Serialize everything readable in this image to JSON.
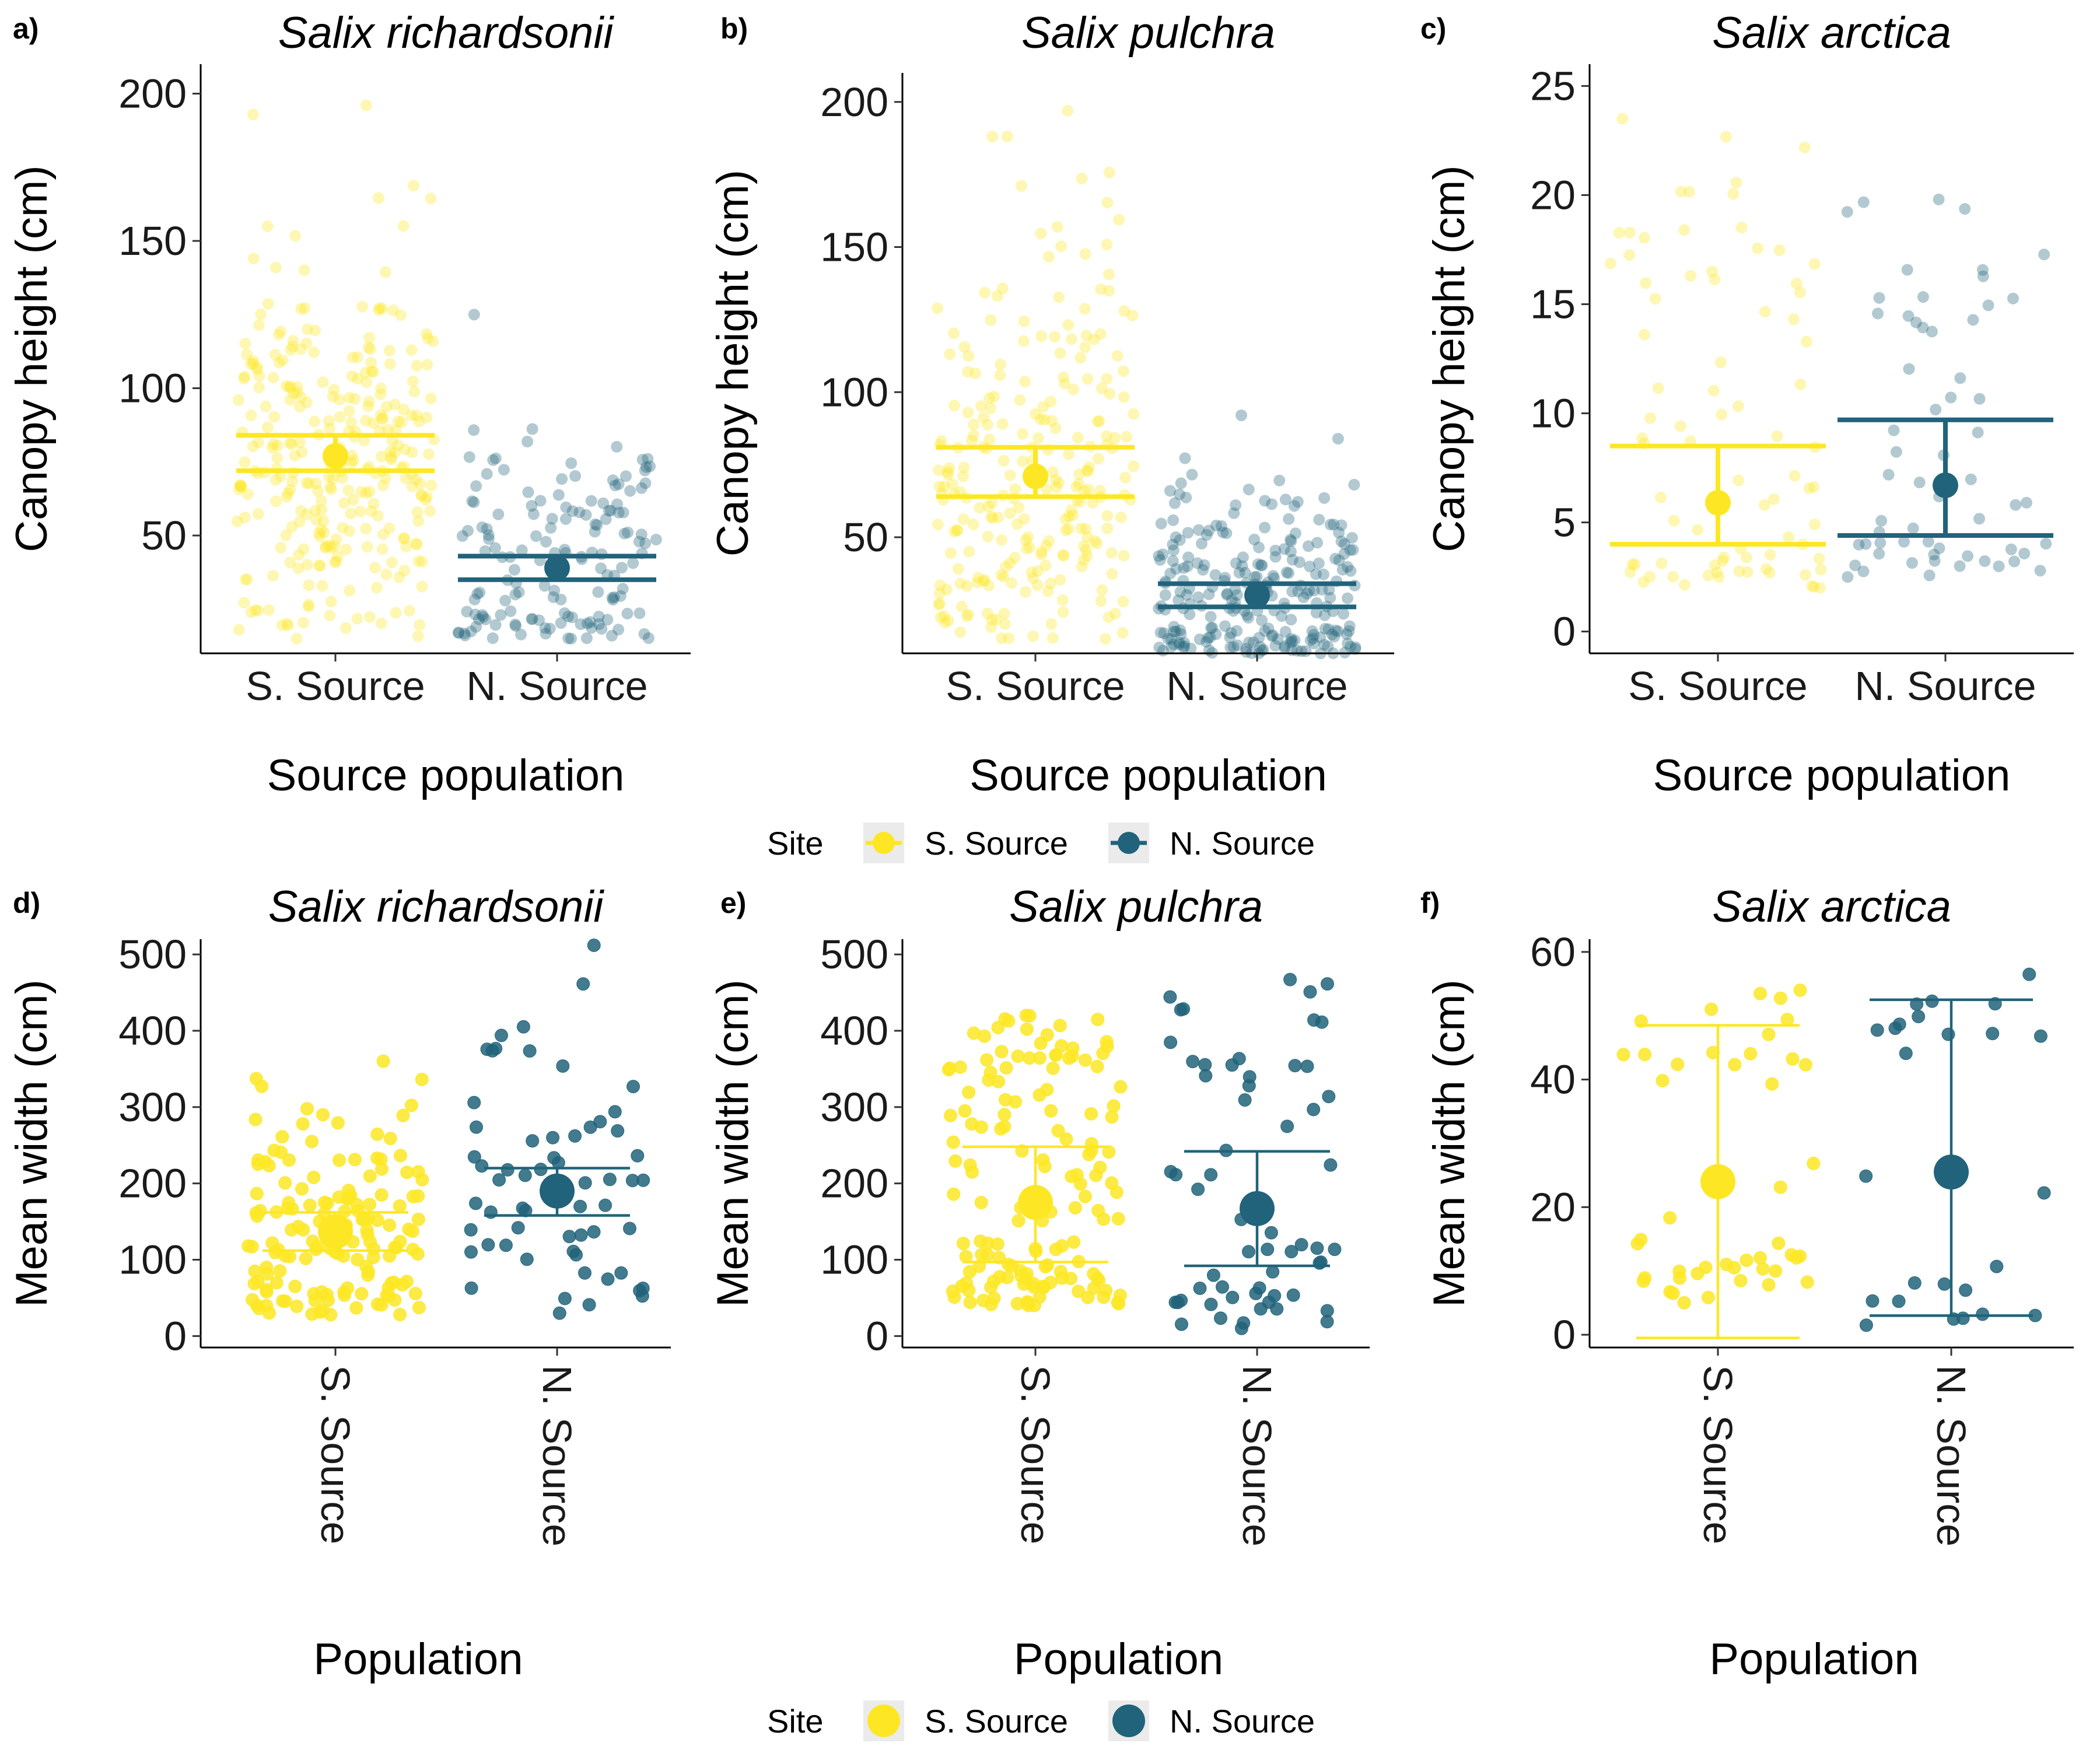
{
  "colors": {
    "s_source": "#FDE725",
    "n_source": "#21637A",
    "n_source_light": "#6E95A3",
    "legend_key_bg": "#EBEBEB"
  },
  "legends": [
    {
      "title": "Site",
      "items": [
        {
          "label": "S. Source",
          "color_key": "s_source"
        },
        {
          "label": "N. Source",
          "color_key": "n_source"
        }
      ]
    },
    {
      "title": "Site",
      "items": [
        {
          "label": "S. Source",
          "color_key": "s_source"
        },
        {
          "label": "N. Source",
          "color_key": "n_source"
        }
      ]
    }
  ],
  "chart_data": [
    {
      "panel": "a)",
      "type": "scatter",
      "title": "Salix richardsonii",
      "xlabel": "Source population",
      "ylabel": "Canopy height (cm)",
      "categories": [
        "S. Source",
        "N. Source"
      ],
      "ylim": [
        10,
        210
      ],
      "yticks": [
        50,
        100,
        150,
        200
      ],
      "x_labels_rotated": false,
      "point_alpha": 0.35,
      "groups": [
        {
          "name": "S. Source",
          "mean": 77,
          "ci": [
            72,
            84
          ],
          "n": 300,
          "range": [
            15,
            196
          ]
        },
        {
          "name": "N. Source",
          "mean": 39,
          "ci": [
            35,
            43
          ],
          "n": 150,
          "range": [
            15,
            125
          ]
        }
      ]
    },
    {
      "panel": "b)",
      "type": "scatter",
      "title": "Salix pulchra",
      "xlabel": "Source population",
      "ylabel": "Canopy height (cm)",
      "categories": [
        "S. Source",
        "N. Source"
      ],
      "ylim": [
        10,
        210
      ],
      "yticks": [
        50,
        100,
        150,
        200
      ],
      "x_labels_rotated": false,
      "point_alpha": 0.35,
      "groups": [
        {
          "name": "S. Source",
          "mean": 71,
          "ci": [
            64,
            81
          ],
          "n": 250,
          "range": [
            15,
            197
          ]
        },
        {
          "name": "N. Source",
          "mean": 30,
          "ci": [
            26,
            34
          ],
          "n": 250,
          "range": [
            10,
            92
          ]
        }
      ]
    },
    {
      "panel": "c)",
      "type": "scatter",
      "title": "Salix arctica",
      "xlabel": "Source population",
      "ylabel": "Canopy height (cm)",
      "categories": [
        "S. Source",
        "N. Source"
      ],
      "ylim": [
        -1,
        26
      ],
      "yticks": [
        0,
        5,
        10,
        15,
        20,
        25
      ],
      "x_labels_rotated": false,
      "point_alpha": 0.35,
      "groups": [
        {
          "name": "S. Source",
          "mean": 5.9,
          "ci": [
            4.0,
            8.5
          ],
          "n": 80,
          "range": [
            2,
            23.5
          ]
        },
        {
          "name": "N. Source",
          "mean": 6.7,
          "ci": [
            4.4,
            9.7
          ],
          "n": 60,
          "range": [
            2.5,
            19.8
          ]
        }
      ]
    },
    {
      "panel": "d)",
      "type": "scatter",
      "title": "Salix richardsonii",
      "xlabel": "Population",
      "ylabel": "Mean width (cm)",
      "categories": [
        "S. Source",
        "N. Source"
      ],
      "ylim": [
        -15,
        520
      ],
      "yticks": [
        0,
        100,
        200,
        300,
        400,
        500
      ],
      "x_labels_rotated": true,
      "point_alpha": 0.85,
      "groups": [
        {
          "name": "S. Source",
          "mean": 137,
          "ci": [
            112,
            162
          ],
          "n": 150,
          "range": [
            28,
            360
          ]
        },
        {
          "name": "N. Source",
          "mean": 190,
          "ci": [
            158,
            220
          ],
          "n": 60,
          "range": [
            30,
            512
          ]
        }
      ]
    },
    {
      "panel": "e)",
      "type": "scatter",
      "title": "Salix pulchra",
      "xlabel": "Population",
      "ylabel": "Mean width (cm)",
      "categories": [
        "S. Source",
        "N. Source"
      ],
      "ylim": [
        -15,
        520
      ],
      "yticks": [
        0,
        100,
        200,
        300,
        400,
        500
      ],
      "x_labels_rotated": true,
      "point_alpha": 0.85,
      "groups": [
        {
          "name": "S. Source",
          "mean": 175,
          "ci": [
            97,
            248
          ],
          "n": 150,
          "range": [
            40,
            420
          ]
        },
        {
          "name": "N. Source",
          "mean": 167,
          "ci": [
            92,
            242
          ],
          "n": 60,
          "range": [
            10,
            467
          ]
        }
      ]
    },
    {
      "panel": "f)",
      "type": "scatter",
      "title": "Salix arctica",
      "xlabel": "Population",
      "ylabel": "Mean width (cm)",
      "categories": [
        "S. Source",
        "N. Source"
      ],
      "ylim": [
        -2,
        62
      ],
      "yticks": [
        0,
        20,
        40,
        60
      ],
      "x_labels_rotated": true,
      "point_alpha": 0.85,
      "groups": [
        {
          "name": "S. Source",
          "mean": 24,
          "ci": [
            -0.5,
            48.5
          ],
          "n": 45,
          "range": [
            5,
            54
          ]
        },
        {
          "name": "N. Source",
          "mean": 25.5,
          "ci": [
            3,
            52.5
          ],
          "n": 25,
          "range": [
            1.5,
            56.5
          ]
        }
      ]
    }
  ]
}
